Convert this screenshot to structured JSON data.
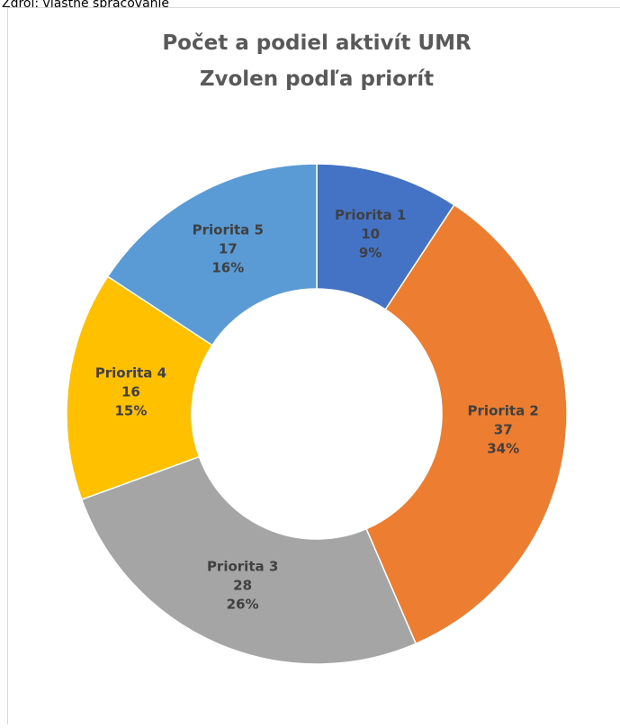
{
  "source": "Zdroj: vlastné spracovanie",
  "chart_data": {
    "type": "donut",
    "title": "Počet a podiel aktivít UMR Zvolen podľa priorít",
    "categories": [
      "Priorita 1",
      "Priorita 2",
      "Priorita 3",
      "Priorita 4",
      "Priorita 5"
    ],
    "values": [
      10,
      37,
      28,
      16,
      17
    ],
    "percentages": [
      9,
      34,
      26,
      15,
      16
    ],
    "percentage_labels": [
      "9%",
      "34%",
      "26%",
      "15%",
      "16%"
    ],
    "colors": [
      "#4472c4",
      "#ed7d31",
      "#a5a5a5",
      "#ffc000",
      "#5b9bd5"
    ]
  }
}
